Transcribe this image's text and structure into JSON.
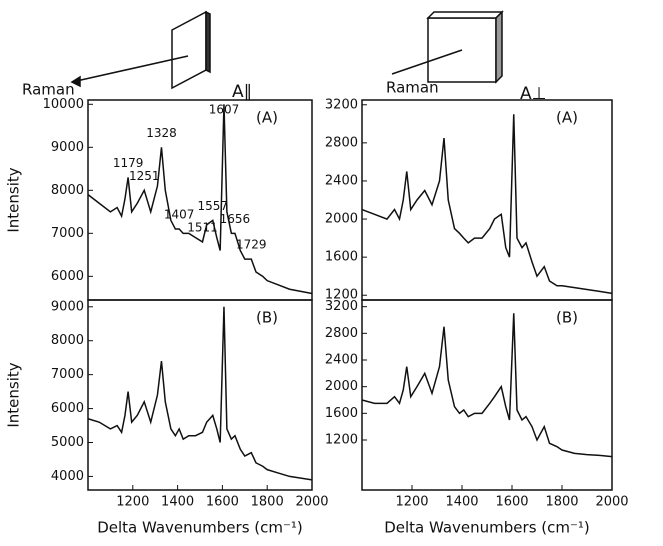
{
  "illustrations": [
    {
      "label": "Raman",
      "caption": "A∥"
    },
    {
      "label": "Raman",
      "caption": "A⊥"
    }
  ],
  "chart_data": [
    {
      "type": "line",
      "panel_label": "(A)",
      "ylabel": "Intensity",
      "x": [
        1000,
        1050,
        1100,
        1130,
        1150,
        1165,
        1179,
        1195,
        1220,
        1251,
        1280,
        1310,
        1328,
        1345,
        1370,
        1390,
        1407,
        1425,
        1450,
        1480,
        1511,
        1530,
        1557,
        1575,
        1590,
        1607,
        1620,
        1640,
        1656,
        1680,
        1700,
        1729,
        1750,
        1780,
        1800,
        1850,
        1900,
        1950,
        2000
      ],
      "series": [
        {
          "color": "#111111",
          "values": [
            7900,
            7700,
            7500,
            7600,
            7400,
            7800,
            8300,
            7500,
            7700,
            8000,
            7500,
            8100,
            9000,
            8000,
            7300,
            7100,
            7100,
            7000,
            7000,
            6900,
            6800,
            7200,
            7300,
            6900,
            6600,
            10000,
            7500,
            7000,
            7000,
            6600,
            6400,
            6400,
            6100,
            6000,
            5900,
            5800,
            5700,
            5650,
            5600
          ]
        }
      ],
      "annotations": [
        1179,
        1251,
        1328,
        1407,
        1511,
        1557,
        1607,
        1656,
        1729
      ],
      "xlim": [
        1000,
        2000
      ],
      "ylim": [
        5450,
        10100
      ],
      "yticks": [
        6000,
        7000,
        8000,
        9000,
        10000
      ]
    },
    {
      "type": "line",
      "panel_label": "(B)",
      "ylabel": "Intensity",
      "xlabel": "Delta Wavenumbers (cm⁻¹)",
      "x": [
        1000,
        1050,
        1100,
        1130,
        1150,
        1165,
        1179,
        1195,
        1220,
        1251,
        1280,
        1310,
        1328,
        1345,
        1370,
        1390,
        1407,
        1425,
        1450,
        1480,
        1511,
        1530,
        1557,
        1575,
        1590,
        1607,
        1620,
        1640,
        1656,
        1680,
        1700,
        1729,
        1750,
        1780,
        1800,
        1850,
        1900,
        1950,
        2000
      ],
      "series": [
        {
          "color": "#111111",
          "values": [
            5700,
            5600,
            5400,
            5500,
            5300,
            5800,
            6500,
            5600,
            5800,
            6200,
            5600,
            6400,
            7400,
            6200,
            5400,
            5200,
            5400,
            5100,
            5200,
            5200,
            5300,
            5600,
            5800,
            5400,
            5000,
            9000,
            5400,
            5100,
            5200,
            4800,
            4600,
            4700,
            4400,
            4300,
            4200,
            4100,
            4000,
            3950,
            3900
          ]
        }
      ],
      "xlim": [
        1000,
        2000
      ],
      "xticks": [
        1200,
        1400,
        1600,
        1800,
        2000
      ],
      "ylim": [
        3600,
        9200
      ],
      "yticks": [
        4000,
        5000,
        6000,
        7000,
        8000,
        9000
      ]
    },
    {
      "type": "line",
      "panel_label": "(A)",
      "x": [
        1000,
        1050,
        1100,
        1130,
        1150,
        1165,
        1179,
        1195,
        1220,
        1251,
        1280,
        1310,
        1328,
        1345,
        1370,
        1390,
        1407,
        1425,
        1450,
        1480,
        1511,
        1530,
        1557,
        1575,
        1590,
        1607,
        1620,
        1640,
        1656,
        1680,
        1700,
        1729,
        1750,
        1780,
        1800,
        1850,
        1900,
        1950,
        2000
      ],
      "series": [
        {
          "color": "#111111",
          "values": [
            2100,
            2050,
            2000,
            2100,
            2000,
            2200,
            2500,
            2100,
            2200,
            2300,
            2150,
            2400,
            2850,
            2200,
            1900,
            1850,
            1800,
            1750,
            1800,
            1800,
            1900,
            2000,
            2050,
            1700,
            1600,
            3100,
            1800,
            1700,
            1750,
            1550,
            1400,
            1500,
            1350,
            1300,
            1300,
            1280,
            1260,
            1240,
            1220
          ]
        }
      ],
      "xlim": [
        1000,
        2000
      ],
      "ylim": [
        1150,
        3250
      ],
      "yticks": [
        1200,
        1600,
        2000,
        2400,
        2800,
        3200
      ]
    },
    {
      "type": "line",
      "panel_label": "(B)",
      "xlabel": "Delta Wavenumbers (cm⁻¹)",
      "x": [
        1000,
        1050,
        1100,
        1130,
        1150,
        1165,
        1179,
        1195,
        1220,
        1251,
        1280,
        1310,
        1328,
        1345,
        1370,
        1390,
        1407,
        1425,
        1450,
        1480,
        1511,
        1530,
        1557,
        1575,
        1590,
        1607,
        1620,
        1640,
        1656,
        1680,
        1700,
        1729,
        1750,
        1780,
        1800,
        1850,
        1900,
        1950,
        2000
      ],
      "series": [
        {
          "color": "#111111",
          "values": [
            1800,
            1750,
            1750,
            1850,
            1750,
            1950,
            2300,
            1850,
            2000,
            2200,
            1900,
            2300,
            2900,
            2100,
            1700,
            1600,
            1650,
            1550,
            1600,
            1600,
            1750,
            1850,
            2000,
            1700,
            1500,
            3100,
            1650,
            1500,
            1550,
            1400,
            1200,
            1400,
            1150,
            1100,
            1050,
            1000,
            980,
            970,
            950
          ]
        }
      ],
      "xlim": [
        1000,
        2000
      ],
      "xticks": [
        1200,
        1400,
        1600,
        1800,
        2000
      ],
      "ylim": [
        450,
        3300
      ],
      "yticks": [
        1200,
        1600,
        2000,
        2400,
        2800,
        3200
      ]
    }
  ]
}
